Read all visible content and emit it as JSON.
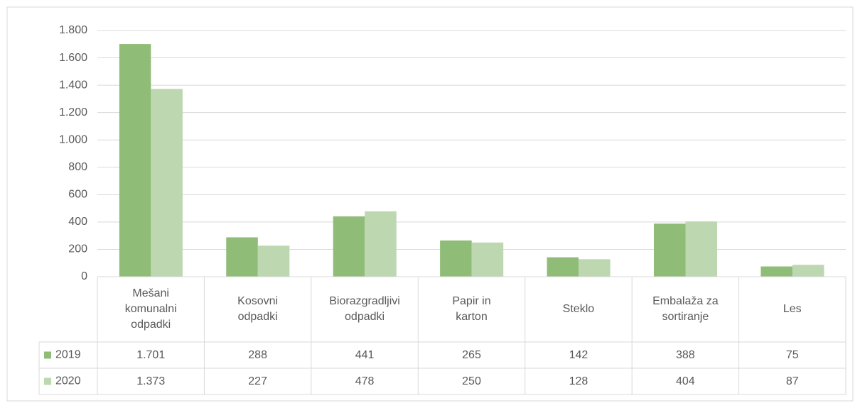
{
  "chart_data": {
    "type": "bar",
    "categories": [
      "Mešani komunalni odpadki",
      "Kosovni odpadki",
      "Biorazgradljivi odpadki",
      "Papir in karton",
      "Steklo",
      "Embalaža za sortiranje",
      "Les"
    ],
    "series": [
      {
        "name": "2019",
        "color": "#8fbc76",
        "values": [
          1701,
          288,
          441,
          265,
          142,
          388,
          75
        ],
        "value_labels": [
          "1.701",
          "288",
          "441",
          "265",
          "142",
          "388",
          "75"
        ]
      },
      {
        "name": "2020",
        "color": "#bdd7b0",
        "values": [
          1373,
          227,
          478,
          250,
          128,
          404,
          87
        ],
        "value_labels": [
          "1.373",
          "227",
          "478",
          "250",
          "128",
          "404",
          "87"
        ]
      }
    ],
    "ylim": [
      0,
      1800
    ],
    "yticks": [
      0,
      200,
      400,
      600,
      800,
      {
        "value": 1000,
        "label": "1.000"
      },
      {
        "value": 1200,
        "label": "1.200"
      },
      {
        "value": 1400,
        "label": "1.400"
      },
      {
        "value": 1600,
        "label": "1.600"
      },
      {
        "value": 1800,
        "label": "1.800"
      }
    ],
    "grid": true
  }
}
